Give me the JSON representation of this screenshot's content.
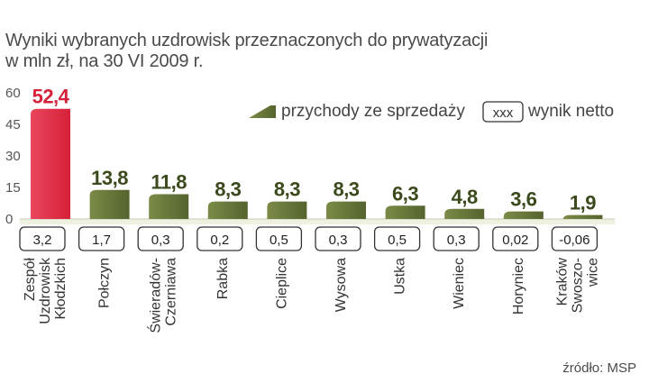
{
  "title": {
    "line1": "Wyniki wybranych uzdrowisk przeznaczonych do prywatyzacji",
    "line2": "w mln zł, na 30 VI 2009 r."
  },
  "source": "źródło: MSP",
  "colors": {
    "bar_green": "#55632e",
    "bar_green_light": "#7b8b46",
    "bar_red": "#d6213a",
    "label_green": "#3b4a1c",
    "label_red": "#d6213a",
    "axis_band": "#eef0e0"
  },
  "chart_data": {
    "type": "bar",
    "title": "Wyniki wybranych uzdrowisk przeznaczonych do prywatyzacji",
    "subtitle": "w mln zł, na 30 VI 2009 r.",
    "ylim": [
      0,
      60
    ],
    "yticks": [
      "60",
      "45",
      "30",
      "15",
      "0"
    ],
    "ytick_values": [
      60,
      45,
      30,
      15,
      0
    ],
    "grid": false,
    "legend": {
      "position": "top-right",
      "series_label": "przychody ze sprzedaży",
      "box_label": "xxx",
      "box_desc": "wynik netto"
    },
    "categories": [
      [
        "Zespół",
        "Uzdrowisk",
        "Kłodzkich"
      ],
      [
        "Połczyn"
      ],
      [
        "Świeradów-",
        "Czerniawa"
      ],
      [
        "Rabka"
      ],
      [
        "Cieplice"
      ],
      [
        "Wysowa"
      ],
      [
        "Ustka"
      ],
      [
        "Wieniec"
      ],
      [
        "Horyniec"
      ],
      [
        "Kraków",
        "Swoszo-",
        "wice"
      ]
    ],
    "series": [
      {
        "name": "przychody ze sprzedaży",
        "values": [
          52.4,
          13.8,
          11.8,
          8.3,
          8.3,
          8.3,
          6.3,
          4.8,
          3.6,
          1.9
        ],
        "labels": [
          "52,4",
          "13,8",
          "11,8",
          "8,3",
          "8,3",
          "8,3",
          "6,3",
          "4,8",
          "3,6",
          "1,9"
        ],
        "highlight_index": 0
      },
      {
        "name": "wynik netto",
        "values": [
          3.2,
          1.7,
          0.3,
          0.2,
          0.5,
          0.3,
          0.5,
          0.3,
          0.02,
          -0.06
        ],
        "labels": [
          "3,2",
          "1,7",
          "0,3",
          "0,2",
          "0,5",
          "0,3",
          "0,5",
          "0,3",
          "0,02",
          "-0,06"
        ]
      }
    ]
  }
}
